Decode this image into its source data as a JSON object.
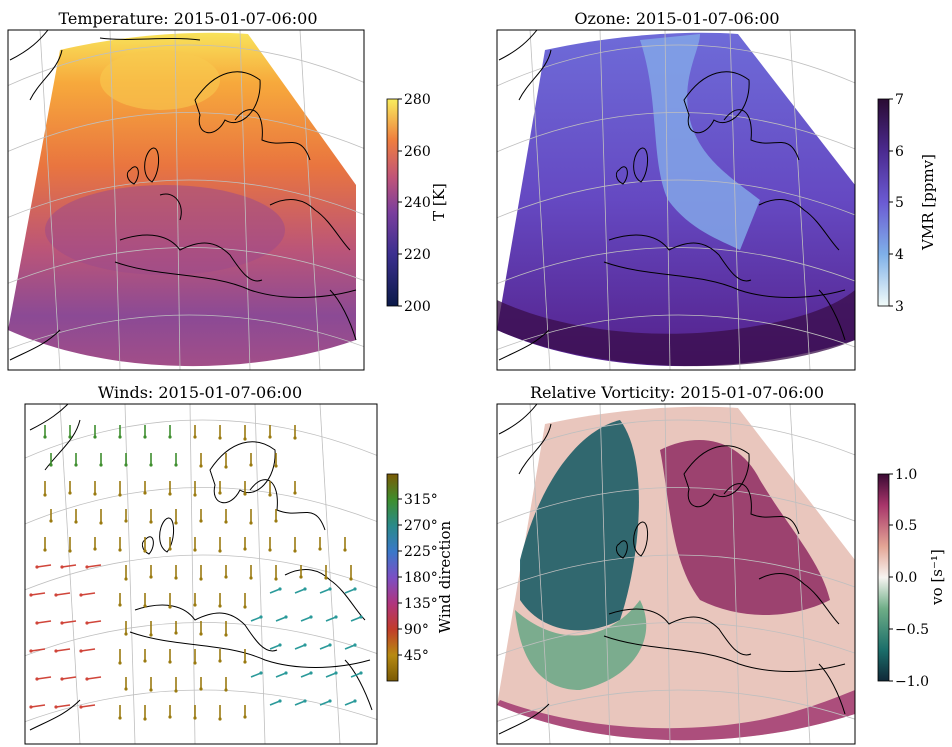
{
  "chart_data": [
    {
      "type": "heatmap",
      "title": "Temperature: 2015-01-07-06:00",
      "colorbar": {
        "label": "T [K]",
        "range": [
          200,
          280
        ],
        "ticks": [
          200,
          220,
          240,
          260,
          280
        ],
        "tick_labels": [
          "200",
          "220",
          "240",
          "260",
          "280"
        ],
        "colormap": [
          "#0c1a4a",
          "#3b2f8f",
          "#7a3e9d",
          "#b9507f",
          "#e8704a",
          "#f5a23a",
          "#f9e35a"
        ]
      },
      "field_summary": "Warm (270-280 K) over Scandinavia/north Atlantic, ~250 K over central Europe, cooler (~240 K) over the Mediterranean and North Africa"
    },
    {
      "type": "heatmap",
      "title": "Ozone: 2015-01-07-06:00",
      "colorbar": {
        "label": "VMR [ppmv]",
        "range": [
          3,
          7
        ],
        "ticks": [
          3,
          4,
          5,
          6,
          7
        ],
        "tick_labels": [
          "3",
          "4",
          "5",
          "6",
          "7"
        ],
        "colormap": [
          "#f1fbfa",
          "#7aa8e6",
          "#6b5bd0",
          "#5a34a8",
          "#3d1a6a",
          "#2a0d35"
        ]
      },
      "field_summary": "Low ozone (~4 ppmv) tongue over western Europe and the Alps; high values (~6-7 ppmv) over the Atlantic and south-east"
    },
    {
      "type": "scatter",
      "title": "Winds: 2015-01-07-06:00",
      "colorbar": {
        "label": "Wind direction",
        "ticks": [
          45,
          90,
          135,
          180,
          225,
          270,
          315
        ],
        "tick_labels": [
          "45°",
          "90°",
          "135°",
          "180°",
          "225°",
          "270°",
          "315°"
        ],
        "range": [
          0,
          360
        ],
        "colormap": [
          "#7a5a05",
          "#b8860b",
          "#c0392b",
          "#b0357e",
          "#7b4fc4",
          "#3a78c9",
          "#2a8a8a",
          "#3e8e2e",
          "#7a5a05"
        ]
      },
      "field_summary": "Mostly northerly flow (~0°/360°) over the North Sea and western Europe, westerly flow over the Atlantic in the south-west, easterly-north-easterly flow over the Mediterranean"
    },
    {
      "type": "heatmap",
      "title": "Relative Vorticity: 2015-01-07-06:00",
      "colorbar": {
        "label": "vo [s⁻¹]",
        "range": [
          -1.0,
          1.0
        ],
        "ticks": [
          -1.0,
          -0.5,
          0.0,
          0.5,
          1.0
        ],
        "tick_labels": [
          "−1.0",
          "−0.5",
          "0.0",
          "0.5",
          "1.0"
        ],
        "colormap": [
          "#0f2a3a",
          "#1b6e6a",
          "#5aa37e",
          "#cfe6d4",
          "#f7f4f2",
          "#e9b7a3",
          "#cc6f6c",
          "#9c2f6b",
          "#3c0a36"
        ]
      },
      "field_summary": "Strong negative vorticity over the north Atlantic, positive vorticity bands over central Europe and the Mediterranean"
    }
  ]
}
